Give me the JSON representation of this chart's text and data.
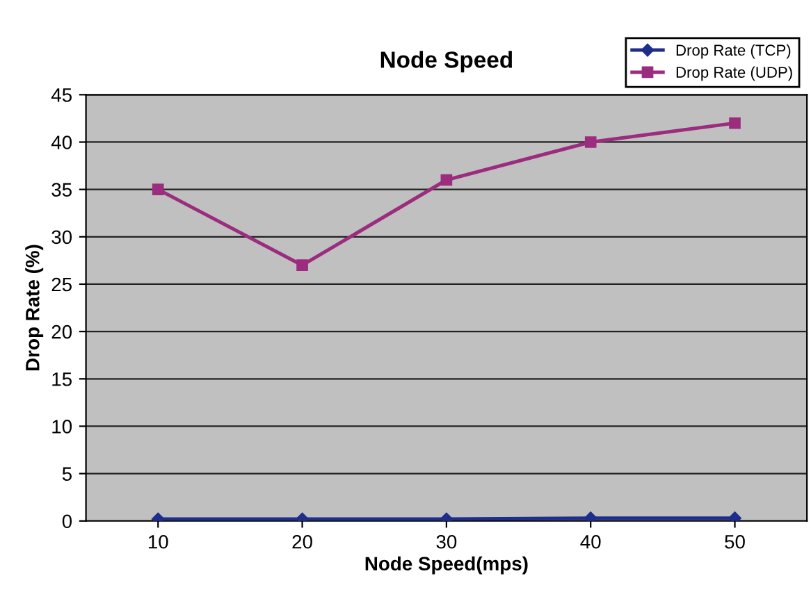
{
  "chart_data": {
    "type": "line",
    "title": "Node Speed",
    "xlabel": "Node Speed(mps)",
    "ylabel": "Drop Rate (%)",
    "categories": [
      "10",
      "20",
      "30",
      "40",
      "50"
    ],
    "series": [
      {
        "name": "Drop Rate (TCP)",
        "color": "#1f2e8c",
        "values": [
          0.2,
          0.2,
          0.2,
          0.3,
          0.3
        ],
        "marker": "diamond"
      },
      {
        "name": "Drop Rate (UDP)",
        "color": "#9b2c7e",
        "values": [
          35,
          27,
          36,
          40,
          42
        ],
        "marker": "square"
      }
    ],
    "ylim": [
      0,
      45
    ],
    "yticks": [
      0,
      5,
      10,
      15,
      20,
      25,
      30,
      35,
      40,
      45
    ],
    "grid": "y",
    "legend": "top right"
  }
}
